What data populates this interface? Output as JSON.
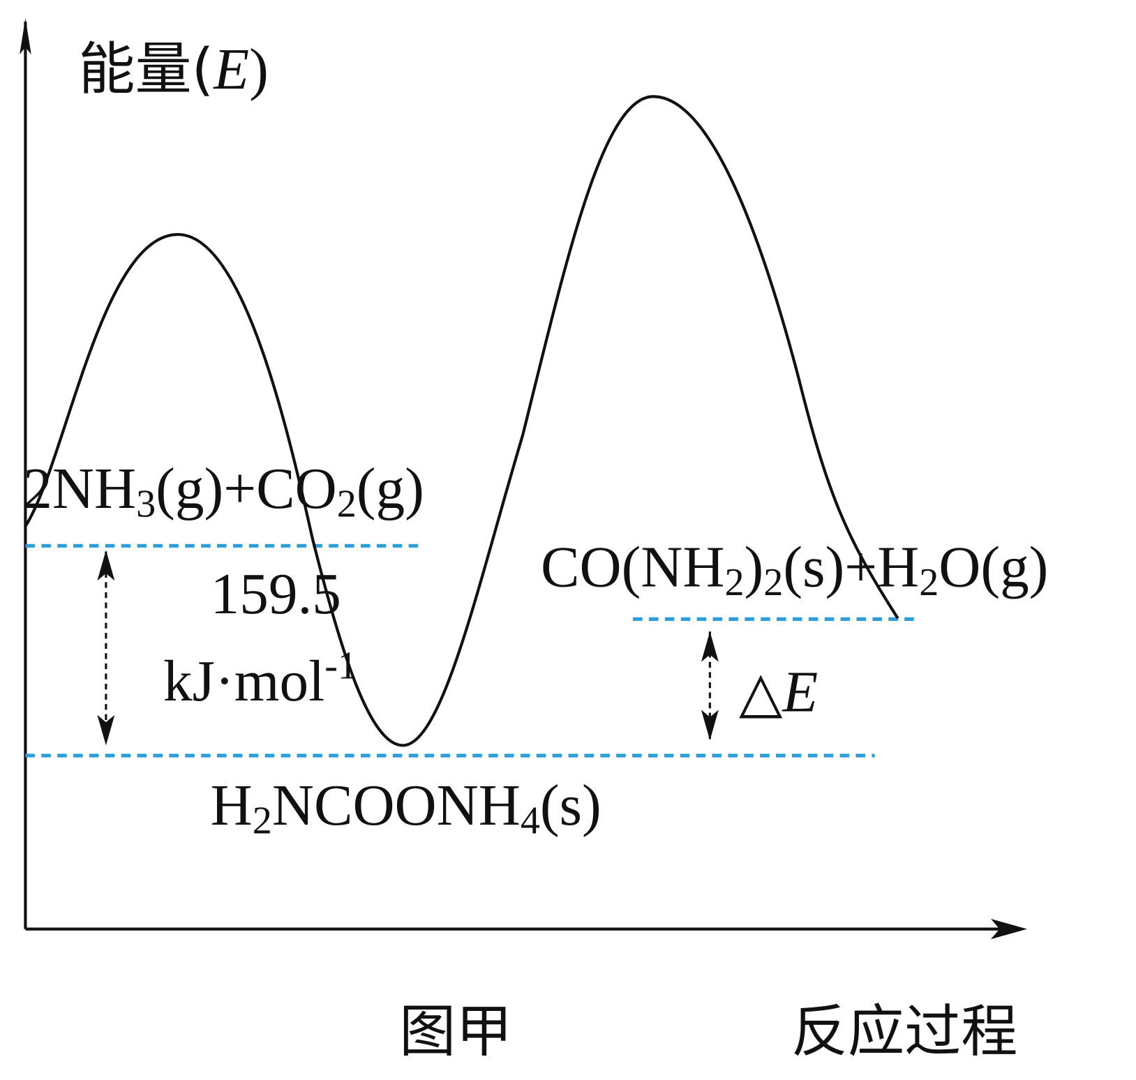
{
  "axis": {
    "y_label": {
      "prefix": "能量(",
      "symbol": "E",
      "suffix": ")"
    },
    "x_label": "反应过程"
  },
  "reactants": [
    "2NH",
    "3",
    "(g)+CO",
    "2",
    "(g)"
  ],
  "products": [
    "CO(NH",
    "2",
    ")",
    "2",
    "(s)+H",
    "2",
    "O(g)"
  ],
  "intermediate": [
    "H",
    "2",
    "NCOONH",
    "4",
    "(s)"
  ],
  "energy_gap": {
    "value": "159.5",
    "unit": [
      "kJ·mol",
      "-1"
    ]
  },
  "delta": {
    "symbol": "△",
    "letter": "E"
  },
  "caption": "图甲"
}
